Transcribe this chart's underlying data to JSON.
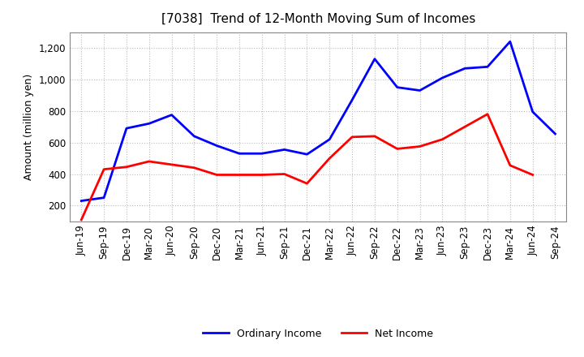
{
  "title": "[7038]  Trend of 12-Month Moving Sum of Incomes",
  "ylabel": "Amount (million yen)",
  "background_color": "#ffffff",
  "plot_background_color": "#ffffff",
  "grid_color": "#bbbbbb",
  "x_labels": [
    "Jun-19",
    "Sep-19",
    "Dec-19",
    "Mar-20",
    "Jun-20",
    "Sep-20",
    "Dec-20",
    "Mar-21",
    "Jun-21",
    "Sep-21",
    "Dec-21",
    "Mar-22",
    "Jun-22",
    "Sep-22",
    "Dec-22",
    "Mar-23",
    "Jun-23",
    "Sep-23",
    "Dec-23",
    "Mar-24",
    "Jun-24",
    "Sep-24"
  ],
  "ordinary_income": [
    230,
    250,
    690,
    720,
    775,
    640,
    580,
    530,
    530,
    555,
    525,
    620,
    870,
    1130,
    950,
    930,
    1010,
    1070,
    1080,
    1240,
    795,
    655
  ],
  "net_income": [
    110,
    430,
    445,
    480,
    460,
    440,
    395,
    395,
    395,
    400,
    340,
    500,
    635,
    640,
    560,
    575,
    620,
    700,
    780,
    455,
    395,
    null
  ],
  "ordinary_color": "#0000ff",
  "net_color": "#ff0000",
  "ylim_min": 100,
  "ylim_max": 1300,
  "yticks": [
    200,
    400,
    600,
    800,
    1000,
    1200
  ],
  "legend_labels": [
    "Ordinary Income",
    "Net Income"
  ],
  "line_width": 2.0,
  "title_fontsize": 11,
  "axis_fontsize": 9,
  "tick_fontsize": 8.5
}
